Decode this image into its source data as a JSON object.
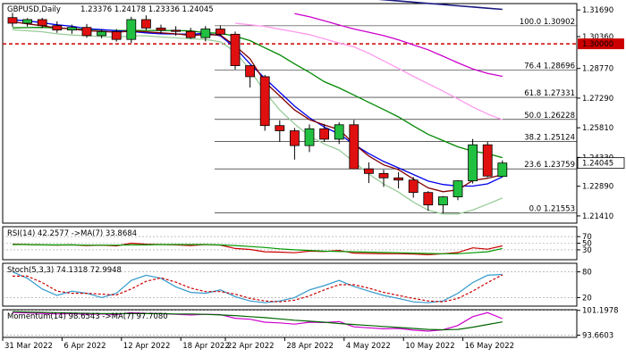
{
  "chart_data": {
    "type": "candlestick",
    "title": "GBPUSD,Daily",
    "ohlc_text": "1.23376 1.24178 1.23336 1.24045",
    "current_price_label": "1.24045",
    "x_labels": [
      "31 Mar 2022",
      "6 Apr 2022",
      "12 Apr 2022",
      "18 Apr 2022",
      "22 Apr 2022",
      "28 Apr 2022",
      "4 May 2022",
      "10 May 2022",
      "16 May 2022"
    ],
    "x_label_bar_index": [
      0,
      4,
      8,
      12,
      15,
      19,
      23,
      27,
      31
    ],
    "price_ticks": [
      1.3169,
      1.3036,
      1.2877,
      1.2729,
      1.2581,
      1.2433,
      1.2289,
      1.2141
    ],
    "price_tick_labels": [
      "1.31690",
      "1.30360",
      "1.28770",
      "1.27290",
      "1.25810",
      "1.24330",
      "1.22890",
      "1.21410"
    ],
    "ylim": [
      1.2105,
      1.3201
    ],
    "horizontal_line": {
      "value": 1.3,
      "label": "1.30000",
      "color": "#cc0000"
    },
    "fibonacci": [
      {
        "label": "100.0 1.30902",
        "value": 1.30902
      },
      {
        "label": "76.4 1.28696",
        "value": 1.28696
      },
      {
        "label": "61.8 1.27331",
        "value": 1.27331
      },
      {
        "label": "50.0 1.26228",
        "value": 1.26228
      },
      {
        "label": "38.2 1.25124",
        "value": 1.25124
      },
      {
        "label": "23.6 1.23759",
        "value": 1.23759
      },
      {
        "label": "0.0 1.21553",
        "value": 1.21553
      }
    ],
    "candles": [
      {
        "o": 1.3131,
        "h": 1.3155,
        "l": 1.3085,
        "c": 1.3103
      },
      {
        "o": 1.3103,
        "h": 1.3128,
        "l": 1.3086,
        "c": 1.3121
      },
      {
        "o": 1.3121,
        "h": 1.313,
        "l": 1.3078,
        "c": 1.3091
      },
      {
        "o": 1.3091,
        "h": 1.3112,
        "l": 1.3055,
        "c": 1.3069
      },
      {
        "o": 1.3069,
        "h": 1.3096,
        "l": 1.305,
        "c": 1.3082
      },
      {
        "o": 1.3082,
        "h": 1.3099,
        "l": 1.303,
        "c": 1.3041
      },
      {
        "o": 1.3041,
        "h": 1.3072,
        "l": 1.3028,
        "c": 1.3061
      },
      {
        "o": 1.3061,
        "h": 1.3074,
        "l": 1.3011,
        "c": 1.3022
      },
      {
        "o": 1.3022,
        "h": 1.3135,
        "l": 1.3005,
        "c": 1.3121
      },
      {
        "o": 1.3121,
        "h": 1.3142,
        "l": 1.3068,
        "c": 1.3079
      },
      {
        "o": 1.3079,
        "h": 1.3096,
        "l": 1.3052,
        "c": 1.3068
      },
      {
        "o": 1.3068,
        "h": 1.3088,
        "l": 1.3041,
        "c": 1.3062
      },
      {
        "o": 1.3062,
        "h": 1.308,
        "l": 1.3025,
        "c": 1.3031
      },
      {
        "o": 1.3031,
        "h": 1.3089,
        "l": 1.3012,
        "c": 1.3074
      },
      {
        "o": 1.3074,
        "h": 1.3092,
        "l": 1.3038,
        "c": 1.3048
      },
      {
        "o": 1.3048,
        "h": 1.3061,
        "l": 1.2872,
        "c": 1.2891
      },
      {
        "o": 1.2891,
        "h": 1.2892,
        "l": 1.2782,
        "c": 1.2836
      },
      {
        "o": 1.2836,
        "h": 1.2845,
        "l": 1.2566,
        "c": 1.2592
      },
      {
        "o": 1.2592,
        "h": 1.2618,
        "l": 1.251,
        "c": 1.2566
      },
      {
        "o": 1.2566,
        "h": 1.258,
        "l": 1.2422,
        "c": 1.2492
      },
      {
        "o": 1.2492,
        "h": 1.2598,
        "l": 1.246,
        "c": 1.2576
      },
      {
        "o": 1.2576,
        "h": 1.26,
        "l": 1.2511,
        "c": 1.2524
      },
      {
        "o": 1.2524,
        "h": 1.2608,
        "l": 1.25,
        "c": 1.2596
      },
      {
        "o": 1.2596,
        "h": 1.262,
        "l": 1.2378,
        "c": 1.2376
      },
      {
        "o": 1.2376,
        "h": 1.2408,
        "l": 1.2305,
        "c": 1.2353
      },
      {
        "o": 1.2353,
        "h": 1.2372,
        "l": 1.2286,
        "c": 1.2331
      },
      {
        "o": 1.2331,
        "h": 1.236,
        "l": 1.2278,
        "c": 1.232
      },
      {
        "o": 1.232,
        "h": 1.2335,
        "l": 1.2232,
        "c": 1.2258
      },
      {
        "o": 1.2258,
        "h": 1.2265,
        "l": 1.2166,
        "c": 1.2196
      },
      {
        "o": 1.2196,
        "h": 1.224,
        "l": 1.2155,
        "c": 1.2236
      },
      {
        "o": 1.2236,
        "h": 1.232,
        "l": 1.222,
        "c": 1.2316
      },
      {
        "o": 1.2316,
        "h": 1.2525,
        "l": 1.2303,
        "c": 1.2496
      },
      {
        "o": 1.2496,
        "h": 1.2512,
        "l": 1.2334,
        "c": 1.234
      },
      {
        "o": 1.2338,
        "h": 1.2418,
        "l": 1.2334,
        "c": 1.2405
      }
    ],
    "moving_averages": [
      {
        "color": "#1a1a80",
        "values": [
          1.3238,
          1.3232,
          1.3226,
          1.322,
          1.3214,
          1.3208,
          1.3202,
          1.3196,
          1.319,
          1.3184,
          1.3178,
          1.3172
        ]
      },
      {
        "color": "#cc00cc",
        "values": [
          1.3151,
          1.3135,
          1.3115,
          1.3094,
          1.3074,
          1.3058,
          1.3041,
          1.302,
          1.2995,
          1.297,
          1.2938,
          1.2905,
          1.2875,
          1.2852,
          1.2838
        ]
      },
      {
        "color": "#ff99ee",
        "values": [
          1.3103,
          1.3095,
          1.3087,
          1.3073,
          1.306,
          1.3046,
          1.3025,
          1.3004,
          1.2985,
          1.2953,
          1.2915,
          1.2877,
          1.2838,
          1.2801,
          1.2764,
          1.2725,
          1.2685,
          1.265,
          1.2621
        ]
      },
      {
        "color": "#008800",
        "values": [
          1.308,
          1.3081,
          1.3082,
          1.3079,
          1.3076,
          1.3072,
          1.3069,
          1.3067,
          1.3067,
          1.3067,
          1.3067,
          1.3066,
          1.3065,
          1.3055,
          1.3053,
          1.3038,
          1.3016,
          1.298,
          1.2945,
          1.29,
          1.2858,
          1.2811,
          1.278,
          1.2744,
          1.2708,
          1.2672,
          1.2635,
          1.259,
          1.2548,
          1.2517,
          1.2486,
          1.2464,
          1.2452,
          1.2432
        ]
      },
      {
        "color": "#0000ee",
        "values": [
          1.312,
          1.3115,
          1.3105,
          1.3095,
          1.3088,
          1.3076,
          1.3071,
          1.3065,
          1.3062,
          1.3055,
          1.305,
          1.3049,
          1.3048,
          1.3052,
          1.304,
          1.298,
          1.29,
          1.2828,
          1.2758,
          1.2689,
          1.2631,
          1.2585,
          1.255,
          1.2498,
          1.2452,
          1.2413,
          1.2381,
          1.2348,
          1.2315,
          1.2298,
          1.229,
          1.229,
          1.2301,
          1.2336
        ]
      },
      {
        "color": "#800000",
        "values": [
          1.311,
          1.31,
          1.309,
          1.308,
          1.3075,
          1.3065,
          1.3062,
          1.3058,
          1.3064,
          1.306,
          1.3055,
          1.305,
          1.3042,
          1.3046,
          1.3044,
          1.299,
          1.2925,
          1.281,
          1.274,
          1.267,
          1.2622,
          1.2595,
          1.2572,
          1.25,
          1.244,
          1.2396,
          1.2372,
          1.2325,
          1.2281,
          1.2262,
          1.2271,
          1.2318,
          1.2329,
          1.2347
        ]
      },
      {
        "color": "#99cc99",
        "values": [
          1.307,
          1.3065,
          1.306,
          1.305,
          1.3044,
          1.304,
          1.3036,
          1.3032,
          1.304,
          1.304,
          1.3034,
          1.303,
          1.3025,
          1.3022,
          1.301,
          1.296,
          1.287,
          1.276,
          1.267,
          1.26,
          1.254,
          1.25,
          1.247,
          1.241,
          1.235,
          1.23,
          1.226,
          1.221,
          1.217,
          1.215,
          1.215,
          1.217,
          1.22,
          1.223
        ]
      }
    ],
    "indicators": [
      {
        "title": "RSI(14) 42.2577 ->MA(7) 33.8684",
        "ylim": [
          0,
          100
        ],
        "ticks": [
          70,
          50,
          30
        ],
        "tick_labels": [
          "70",
          "50",
          "30"
        ],
        "series": [
          {
            "color": "#cc0000",
            "values": [
              47,
              46,
              45,
              44,
              45,
              43,
              44,
              42,
              50,
              47,
              46,
              45,
              43,
              46,
              44,
              34,
              31,
              24,
              23,
              21,
              26,
              25,
              28,
              20,
              19,
              18,
              18,
              17,
              15,
              18,
              22,
              36,
              32,
              42
            ]
          },
          {
            "color": "#009900",
            "values": [
              46,
              46,
              45,
              45,
              45,
              44,
              44,
              44,
              45,
              45,
              46,
              46,
              46,
              46,
              45,
              43,
              40,
              37,
              33,
              30,
              28,
              26,
              25,
              24,
              23,
              22,
              21,
              20,
              19,
              18,
              18,
              21,
              24,
              34
            ]
          }
        ]
      },
      {
        "title": "Stoch(5,3,3) 74.1318 72.9948",
        "ylim": [
          0,
          100
        ],
        "ticks": [
          80,
          20
        ],
        "tick_labels": [
          "80",
          "20"
        ],
        "series": [
          {
            "color": "#3399cc",
            "values": [
              80,
              65,
              40,
              25,
              35,
              30,
              20,
              30,
              60,
              72,
              65,
              45,
              32,
              30,
              38,
              22,
              12,
              8,
              12,
              20,
              38,
              48,
              60,
              46,
              35,
              25,
              18,
              10,
              8,
              12,
              30,
              55,
              72,
              74
            ]
          },
          {
            "color": "#cc0000",
            "values": [
              70,
              70,
              55,
              35,
              30,
              30,
              28,
              26,
              40,
              58,
              66,
              56,
              42,
              34,
              34,
              28,
              18,
              12,
              10,
              14,
              24,
              38,
              50,
              50,
              42,
              32,
              25,
              18,
              12,
              10,
              18,
              35,
              55,
              73
            ]
          }
        ]
      },
      {
        "title": "Momentum(14) 98.6543 ->MA(7) 97.7080",
        "ylim": [
          93.0,
          101.4
        ],
        "ticks": [
          101.1978,
          93.6603
        ],
        "tick_labels": [
          "101.1978",
          "93.6603"
        ],
        "series": [
          {
            "color": "#cc00cc",
            "values": [
              100.6,
              100.4,
              100.3,
              100.1,
              100.2,
              100.0,
              100.1,
              99.9,
              100.5,
              100.3,
              100.2,
              100.0,
              99.8,
              100.0,
              99.9,
              98.8,
              98.5,
              97.6,
              97.4,
              97.0,
              97.6,
              97.5,
              97.8,
              96.2,
              95.9,
              95.6,
              95.7,
              95.2,
              94.9,
              95.3,
              96.6,
              99.3,
              100.5,
              98.7
            ]
          },
          {
            "color": "#006600",
            "values": [
              100.8,
              100.7,
              100.6,
              100.5,
              100.4,
              100.3,
              100.2,
              100.2,
              100.2,
              100.2,
              100.2,
              100.1,
              100.1,
              100.0,
              99.8,
              99.6,
              99.3,
              99.0,
              98.6,
              98.2,
              97.9,
              97.6,
              97.2,
              96.9,
              96.6,
              96.3,
              96.0,
              95.7,
              95.4,
              95.3,
              95.4,
              96.1,
              96.9,
              97.7
            ]
          }
        ]
      }
    ]
  }
}
